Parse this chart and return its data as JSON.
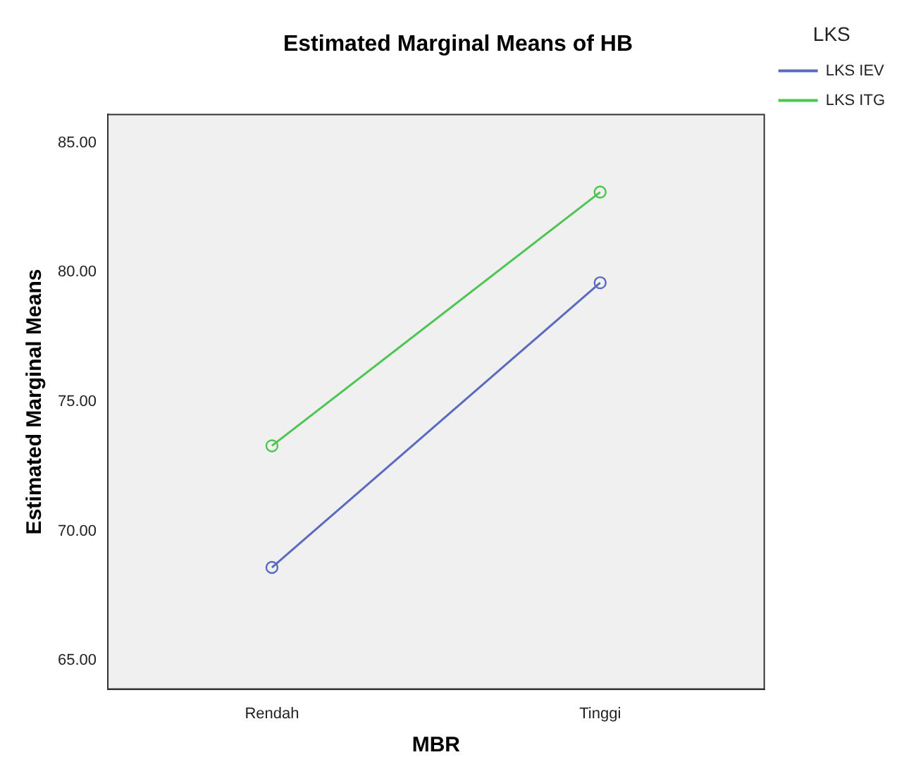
{
  "chart_data": {
    "type": "line",
    "title": "Estimated Marginal Means of HB",
    "xlabel": "MBR",
    "ylabel": "Estimated Marginal Means",
    "legend_title": "LKS",
    "categories": [
      "Rendah",
      "Tinggi"
    ],
    "series": [
      {
        "name": "LKS IEV",
        "color": "#5a6bbf",
        "values": [
          68.6,
          79.6
        ]
      },
      {
        "name": "LKS ITG",
        "color": "#4cc552",
        "values": [
          73.3,
          83.1
        ]
      }
    ],
    "ylim": [
      63.9,
      86.1
    ],
    "yticks": [
      {
        "value": 65,
        "label": "65.00"
      },
      {
        "value": 70,
        "label": "70.00"
      },
      {
        "value": 75,
        "label": "75.00"
      },
      {
        "value": 80,
        "label": "80.00"
      },
      {
        "value": 85,
        "label": "85.00"
      }
    ],
    "grid": false,
    "legend": "top right",
    "marker": "circle",
    "line_style": "solid"
  }
}
